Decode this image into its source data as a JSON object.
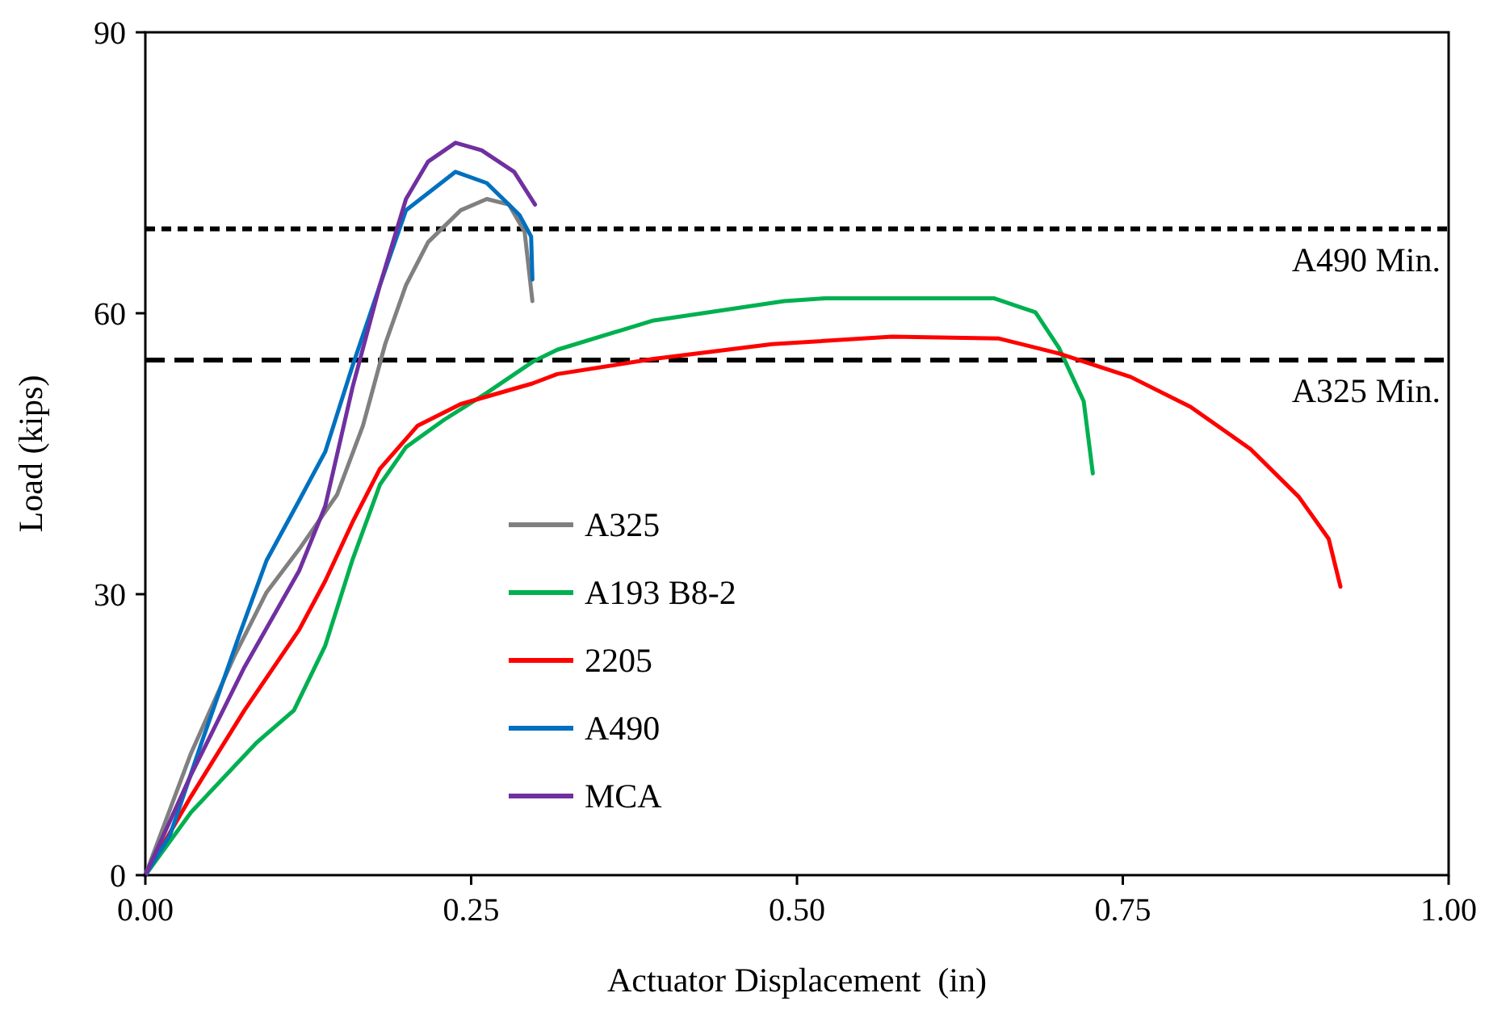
{
  "chart_data": {
    "type": "line",
    "xlabel": "Actuator Displacement  (in)",
    "ylabel": "Load (kips)",
    "xlim": [
      0,
      1
    ],
    "ylim": [
      0,
      90
    ],
    "xticks": [
      {
        "value": 0,
        "label": "0.00"
      },
      {
        "value": 0.25,
        "label": "0.25"
      },
      {
        "value": 0.5,
        "label": "0.50"
      },
      {
        "value": 0.75,
        "label": "0.75"
      },
      {
        "value": 1,
        "label": "1.00"
      }
    ],
    "yticks": [
      0,
      30,
      60,
      90
    ],
    "grid": false,
    "legend": "bottom",
    "line_style": "solid",
    "marker": "none",
    "ref_lines": [
      {
        "axis": "y",
        "value": 69,
        "label": "A490 Min.",
        "line_style": "dotted",
        "color": "#000000"
      },
      {
        "axis": "y",
        "value": 55,
        "label": "A325 Min.",
        "line_style": "dashed",
        "color": "#000000"
      }
    ],
    "series": [
      {
        "name": "A325",
        "color": "#808080",
        "x": [
          0,
          0.035,
          0.068,
          0.093,
          0.118,
          0.147,
          0.167,
          0.184,
          0.2,
          0.217,
          0.242,
          0.262,
          0.279,
          0.291,
          0.297
        ],
        "values": [
          0,
          13,
          23.3,
          30.2,
          34.8,
          40.6,
          48,
          56.7,
          63,
          67.6,
          71,
          72.2,
          71.6,
          68.7,
          61.3
        ]
      },
      {
        "name": "A193 B8-2",
        "color": "#00b050",
        "x": [
          0,
          0.035,
          0.085,
          0.114,
          0.138,
          0.159,
          0.18,
          0.2,
          0.229,
          0.262,
          0.297,
          0.316,
          0.389,
          0.49,
          0.522,
          0.651,
          0.683,
          0.701,
          0.72,
          0.727
        ],
        "values": [
          0,
          6.7,
          14.1,
          17.6,
          24.5,
          33.7,
          41.7,
          45.7,
          48.6,
          51.5,
          54.8,
          56.1,
          59.2,
          61.3,
          61.6,
          61.6,
          60.1,
          56.3,
          50.6,
          42.9
        ]
      },
      {
        "name": "2205",
        "color": "#ff0000",
        "x": [
          0,
          0.035,
          0.076,
          0.118,
          0.138,
          0.159,
          0.18,
          0.209,
          0.242,
          0.297,
          0.316,
          0.389,
          0.481,
          0.573,
          0.655,
          0.701,
          0.756,
          0.802,
          0.848,
          0.885,
          0.908,
          0.917
        ],
        "values": [
          0,
          8.4,
          17.6,
          26.2,
          31.4,
          37.7,
          43.4,
          48,
          50.3,
          52.5,
          53.5,
          55.1,
          56.7,
          57.5,
          57.3,
          55.7,
          53.2,
          50,
          45.5,
          40.4,
          35.9,
          30.8
        ]
      },
      {
        "name": "A490",
        "color": "#0070c0",
        "x": [
          0,
          0.019,
          0.043,
          0.072,
          0.093,
          0.118,
          0.138,
          0.159,
          0.18,
          0.2,
          0.238,
          0.262,
          0.287,
          0.296,
          0.297
        ],
        "values": [
          0,
          4.3,
          14.1,
          25.6,
          33.6,
          40,
          45.2,
          54.4,
          63,
          71,
          75.1,
          73.9,
          70.5,
          68.2,
          63.6
        ]
      },
      {
        "name": "MCA",
        "color": "#7030a0",
        "x": [
          0,
          0.035,
          0.076,
          0.118,
          0.138,
          0.159,
          0.18,
          0.2,
          0.217,
          0.238,
          0.258,
          0.283,
          0.299
        ],
        "values": [
          0,
          10.7,
          22.2,
          32.5,
          39.4,
          52.1,
          63,
          72.2,
          76.2,
          78.2,
          77.4,
          75.1,
          71.6
        ]
      }
    ]
  }
}
